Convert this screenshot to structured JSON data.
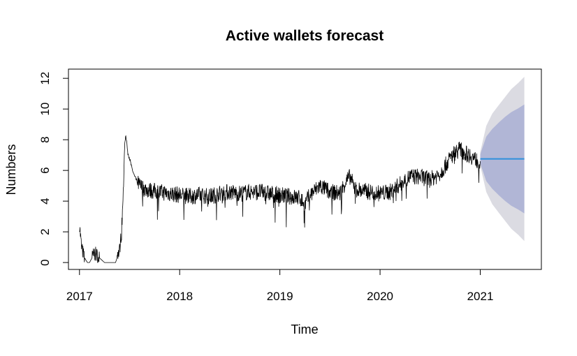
{
  "chart_data": {
    "type": "line",
    "title": "Active wallets forecast",
    "xlabel": "Time",
    "ylabel": "Numbers",
    "xlim": [
      2016.89,
      2021.61
    ],
    "ylim": [
      -0.45,
      12.6
    ],
    "x_ticks": [
      2017,
      2018,
      2019,
      2020,
      2021
    ],
    "x_tick_labels": [
      "2017",
      "2018",
      "2019",
      "2020",
      "2021"
    ],
    "y_ticks": [
      0,
      2,
      4,
      6,
      8,
      10,
      12
    ],
    "y_tick_labels": [
      "0",
      "2",
      "4",
      "6",
      "8",
      "10",
      "12"
    ],
    "grid": false,
    "legend": "none",
    "colors": {
      "observed": "#000000",
      "forecast": "#2f8fdc",
      "interval_80": "#b1b6d6",
      "interval_95": "#dbdbe2"
    },
    "series": [
      {
        "kind": "observed",
        "x": [
          2017.0,
          2017.02,
          2017.04,
          2017.06,
          2017.08,
          2017.1,
          2017.15,
          2017.25,
          2017.28,
          2017.32,
          2017.36,
          2017.4,
          2017.42,
          2017.44,
          2017.45,
          2017.46,
          2017.47,
          2017.48,
          2017.5,
          2017.52,
          2017.55,
          2017.58,
          2017.6,
          2017.65,
          2017.7,
          2017.8,
          2017.9,
          2018.0,
          2018.1,
          2018.2,
          2018.3,
          2018.4,
          2018.5,
          2018.6,
          2018.7,
          2018.8,
          2018.9,
          2019.0,
          2019.1,
          2019.2,
          2019.25,
          2019.3,
          2019.35,
          2019.4,
          2019.5,
          2019.6,
          2019.65,
          2019.7,
          2019.75,
          2019.8,
          2019.9,
          2020.0,
          2020.1,
          2020.2,
          2020.3,
          2020.4,
          2020.5,
          2020.6,
          2020.65,
          2020.7,
          2020.75,
          2020.8,
          2020.85,
          2020.9,
          2020.95,
          2021.0
        ],
        "y": [
          2.5,
          1.0,
          0.5,
          0.2,
          0.0,
          0.0,
          0.6,
          0.0,
          0.0,
          0.0,
          0.0,
          0.8,
          2.0,
          5.0,
          7.5,
          8.3,
          8.0,
          7.2,
          6.8,
          6.2,
          5.6,
          5.2,
          5.0,
          4.8,
          4.7,
          4.6,
          4.5,
          4.4,
          4.3,
          4.4,
          4.3,
          4.5,
          4.6,
          4.5,
          4.6,
          4.6,
          4.5,
          4.4,
          4.3,
          4.2,
          3.8,
          4.4,
          4.7,
          5.0,
          4.6,
          4.5,
          5.2,
          5.6,
          4.8,
          4.7,
          4.6,
          4.5,
          4.6,
          5.1,
          5.6,
          5.6,
          5.4,
          5.8,
          6.3,
          6.8,
          7.2,
          7.4,
          7.1,
          7.0,
          6.7,
          6.6
        ]
      },
      {
        "kind": "forecast",
        "x": [
          2021.0,
          2021.44
        ],
        "y": [
          6.75,
          6.75
        ]
      },
      {
        "kind": "interval_95",
        "x": [
          2021.0,
          2021.06,
          2021.12,
          2021.19,
          2021.25,
          2021.31,
          2021.38,
          2021.44
        ],
        "lower": [
          6.3,
          4.6,
          3.8,
          3.2,
          2.7,
          2.2,
          1.8,
          1.4
        ],
        "upper": [
          7.2,
          8.9,
          9.7,
          10.3,
          10.8,
          11.3,
          11.7,
          12.1
        ]
      },
      {
        "kind": "interval_80",
        "x": [
          2021.0,
          2021.06,
          2021.12,
          2021.19,
          2021.25,
          2021.31,
          2021.38,
          2021.44
        ],
        "lower": [
          6.45,
          5.3,
          4.8,
          4.35,
          4.0,
          3.7,
          3.45,
          3.2
        ],
        "upper": [
          7.05,
          8.2,
          8.7,
          9.15,
          9.5,
          9.8,
          10.05,
          10.3
        ]
      }
    ]
  }
}
